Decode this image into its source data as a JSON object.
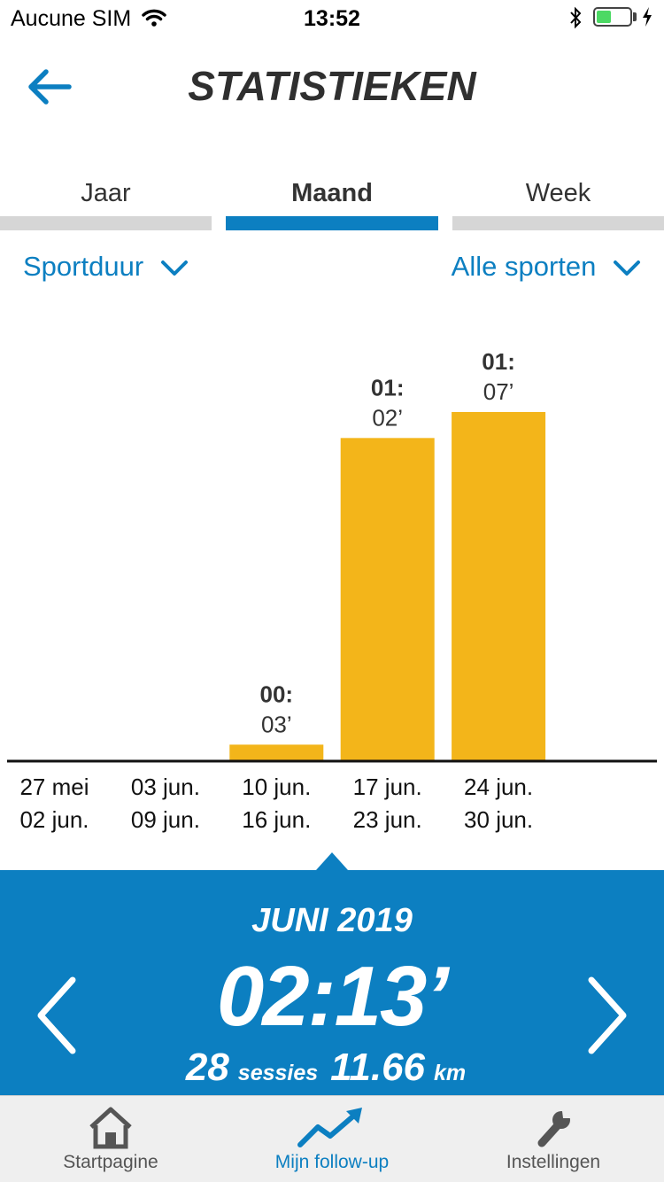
{
  "status_bar": {
    "carrier": "Aucune SIM",
    "time": "13:52"
  },
  "header": {
    "title": "STATISTIEKEN"
  },
  "tabs": [
    {
      "label": "Jaar",
      "active": false
    },
    {
      "label": "Maand",
      "active": true
    },
    {
      "label": "Week",
      "active": false
    }
  ],
  "filters": {
    "metric": "Sportduur",
    "sport": "Alle sporten"
  },
  "chart_data": {
    "type": "bar",
    "categories": [
      "27 mei\n02 jun.",
      "03 jun.\n09 jun.",
      "10 jun.\n16 jun.",
      "17 jun.\n23 jun.",
      "24 jun.\n30 jun."
    ],
    "category_lines": [
      [
        "27 mei",
        "02 jun."
      ],
      [
        "03 jun.",
        "09 jun."
      ],
      [
        "10 jun.",
        "16 jun."
      ],
      [
        "17 jun.",
        "23 jun."
      ],
      [
        "24 jun.",
        "30 jun."
      ]
    ],
    "values": [
      0,
      0,
      3,
      62,
      67
    ],
    "value_unit": "minutes",
    "data_labels": [
      null,
      null,
      [
        "00:",
        "03’"
      ],
      [
        "01:",
        "02’"
      ],
      [
        "01:",
        "07’"
      ]
    ],
    "title": "",
    "xlabel": "",
    "ylabel": "",
    "ylim": [
      0,
      67
    ],
    "grid": false,
    "bar_color": "#f3b51a"
  },
  "summary": {
    "period": "JUNI 2019",
    "total_time": "02:13’",
    "sessions_count": "28",
    "sessions_label": "sessies",
    "distance": "11.66",
    "distance_unit": "km"
  },
  "nav": [
    {
      "label": "Startpagine",
      "icon": "home-icon",
      "active": false
    },
    {
      "label": "Mijn follow-up",
      "icon": "trend-icon",
      "active": true
    },
    {
      "label": "Instellingen",
      "icon": "wrench-icon",
      "active": false
    }
  ],
  "colors": {
    "accent": "#0c7fc1",
    "bar": "#f3b51a",
    "tab_inactive": "#d6d6d6"
  }
}
